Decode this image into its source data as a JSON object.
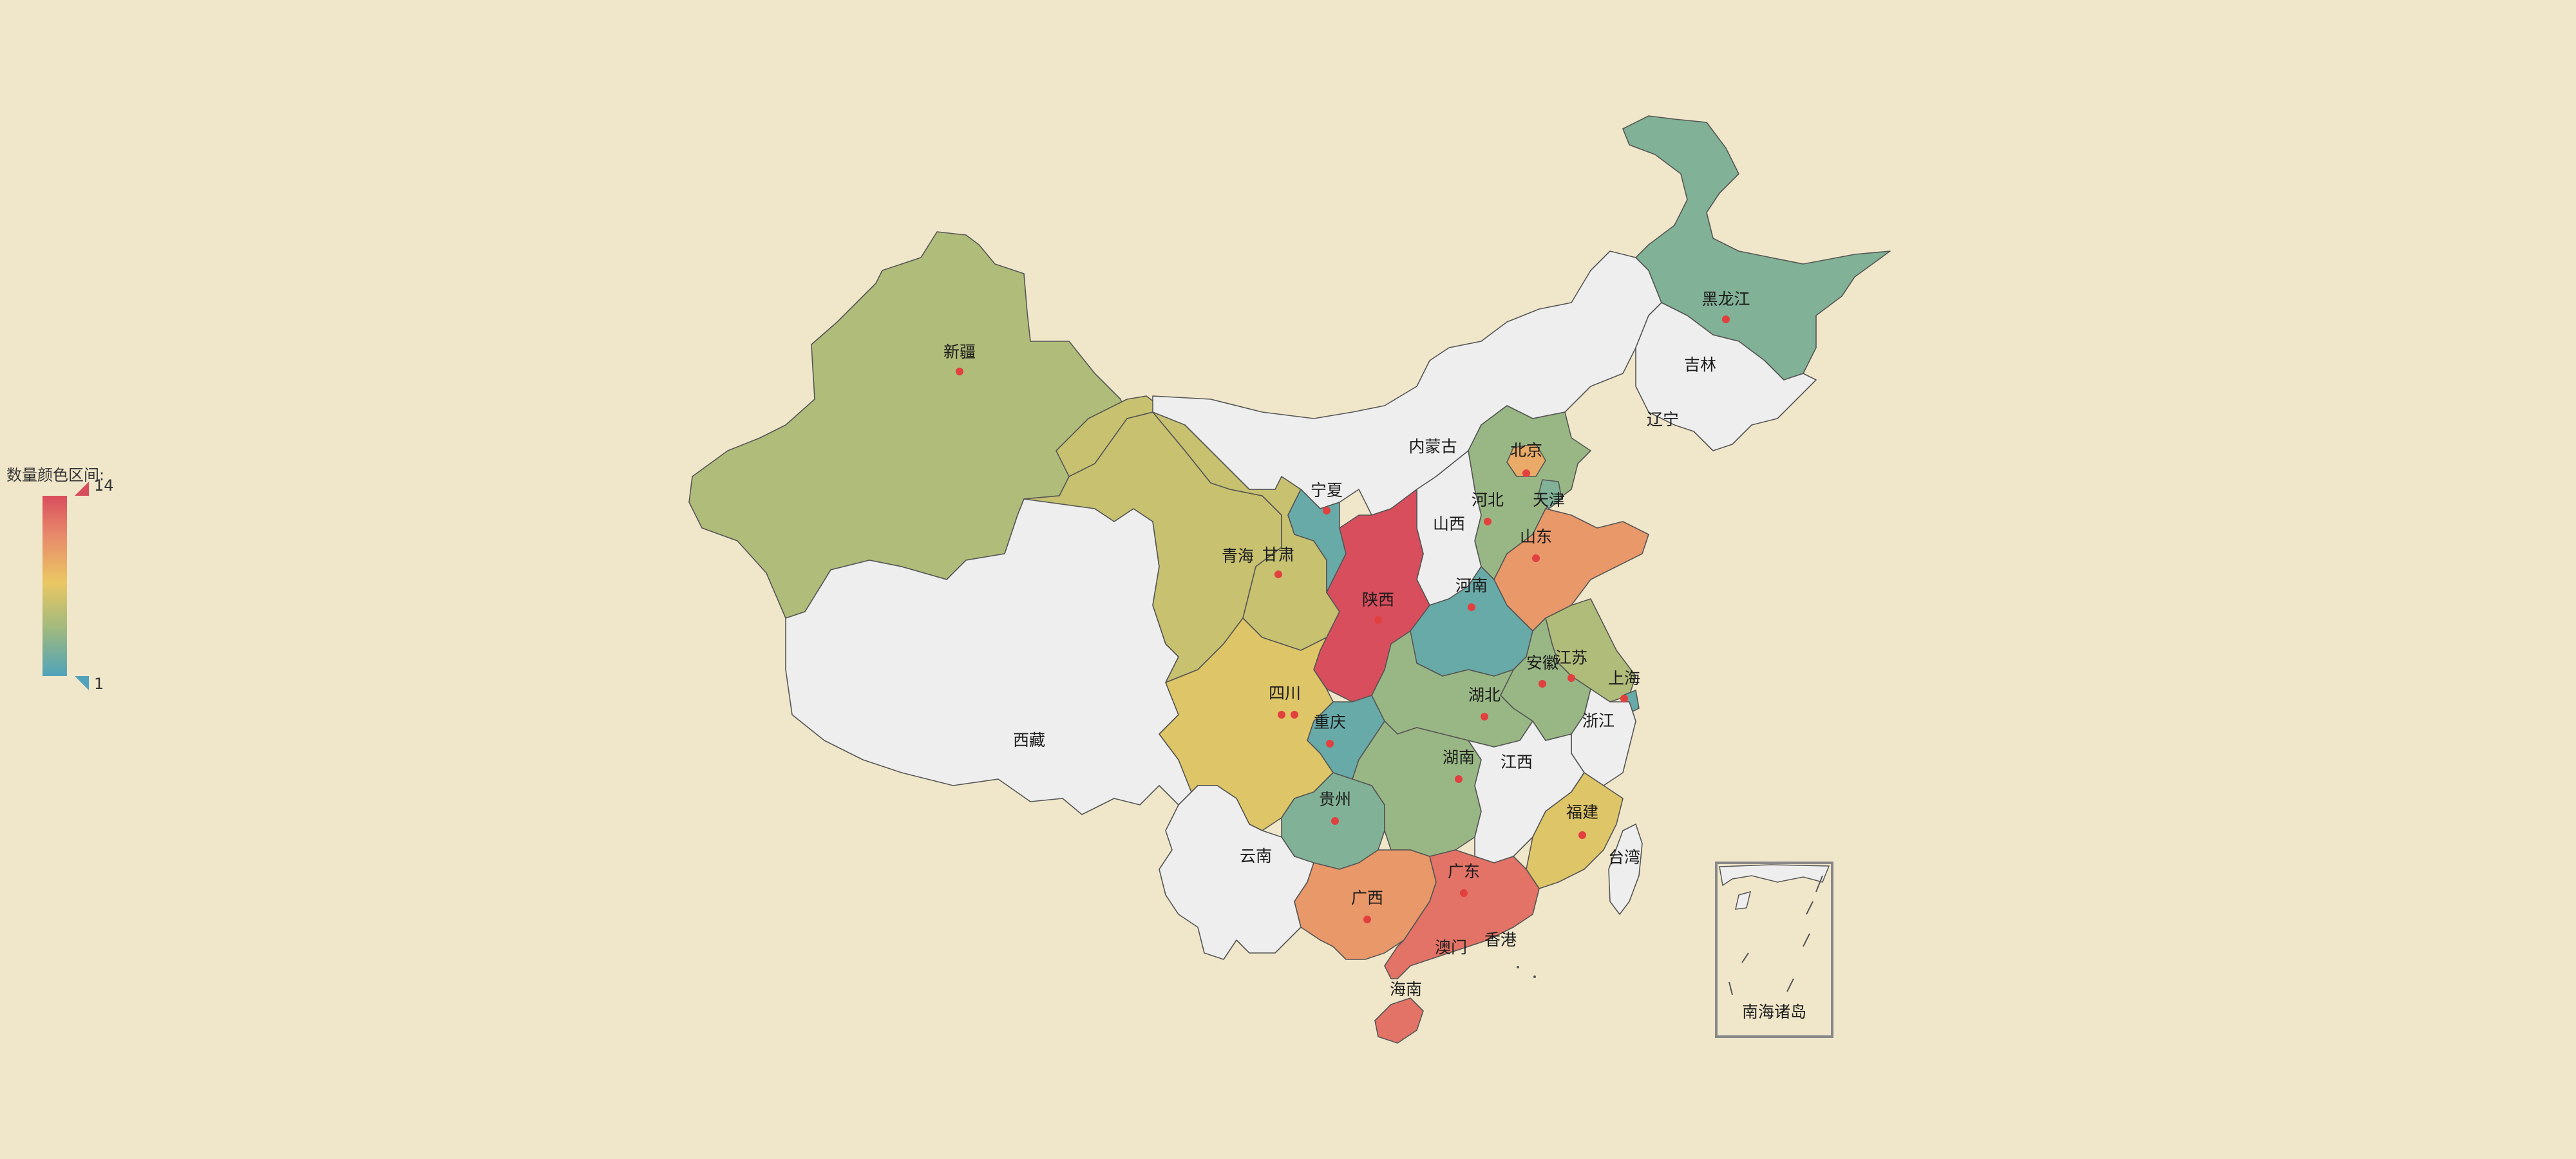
{
  "legend": {
    "title": "数量颜色区间:",
    "max": "14",
    "min": "1"
  },
  "colors": {
    "background": "#f0e7cb",
    "empty": "#eeeeee",
    "scale": [
      "#50a3ba",
      "#9fb97f",
      "#eac763",
      "#e88a6b",
      "#d94e5d"
    ],
    "dot": "#e2403f"
  },
  "map": {
    "inset_label": "南海诸岛",
    "provinces": [
      {
        "name": "新疆",
        "value": 5,
        "dot": true
      },
      {
        "name": "西藏",
        "value": null,
        "dot": false
      },
      {
        "name": "青海",
        "value": 6,
        "dot": false
      },
      {
        "name": "甘肃",
        "value": 6,
        "dot": true
      },
      {
        "name": "宁夏",
        "value": 2,
        "dot": true
      },
      {
        "name": "内蒙古",
        "value": null,
        "dot": false
      },
      {
        "name": "陕西",
        "value": 14,
        "dot": true
      },
      {
        "name": "山西",
        "value": null,
        "dot": false
      },
      {
        "name": "河北",
        "value": 4,
        "dot": true
      },
      {
        "name": "北京",
        "value": 9,
        "dot": true
      },
      {
        "name": "天津",
        "value": 3,
        "dot": false
      },
      {
        "name": "辽宁",
        "value": null,
        "dot": false
      },
      {
        "name": "吉林",
        "value": null,
        "dot": false
      },
      {
        "name": "黑龙江",
        "value": 3,
        "dot": true
      },
      {
        "name": "山东",
        "value": 10,
        "dot": true
      },
      {
        "name": "河南",
        "value": 2,
        "dot": true
      },
      {
        "name": "四川",
        "value": 7,
        "dot": true
      },
      {
        "name": "重庆",
        "value": 2,
        "dot": true
      },
      {
        "name": "湖北",
        "value": 4,
        "dot": true
      },
      {
        "name": "安徽",
        "value": 4,
        "dot": true
      },
      {
        "name": "江苏",
        "value": 5,
        "dot": true
      },
      {
        "name": "上海",
        "value": 2,
        "dot": true
      },
      {
        "name": "浙江",
        "value": null,
        "dot": false
      },
      {
        "name": "贵州",
        "value": 3,
        "dot": true
      },
      {
        "name": "湖南",
        "value": 4,
        "dot": true
      },
      {
        "name": "江西",
        "value": null,
        "dot": false
      },
      {
        "name": "福建",
        "value": 7,
        "dot": true
      },
      {
        "name": "云南",
        "value": null,
        "dot": false
      },
      {
        "name": "广西",
        "value": 10,
        "dot": true
      },
      {
        "name": "广东",
        "value": 12,
        "dot": true
      },
      {
        "name": "海南",
        "value": 12,
        "dot": false
      },
      {
        "name": "台湾",
        "value": null,
        "dot": false
      },
      {
        "name": "香港",
        "value": null,
        "dot": false
      },
      {
        "name": "澳门",
        "value": null,
        "dot": false
      }
    ]
  }
}
